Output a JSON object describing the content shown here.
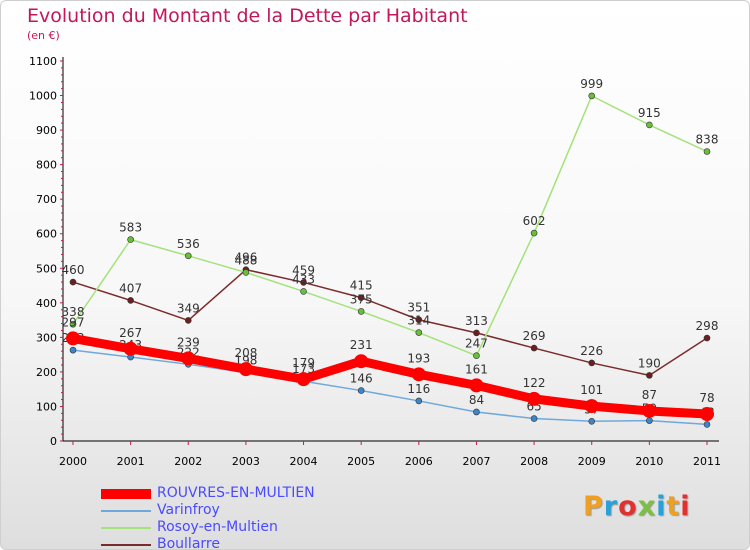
{
  "title": "Evolution du Montant de la Dette par Habitant",
  "subtitle": "(en €)",
  "logo": {
    "text": "Proxiti",
    "colors": [
      "#f0a020",
      "#2aa0d8",
      "#e03030",
      "#7bc043",
      "#2aa0d8",
      "#f0a020",
      "#e03030"
    ]
  },
  "chart_data": {
    "type": "line",
    "title": "Evolution du Montant de la Dette par Habitant",
    "subtitle": "(en €)",
    "x": [
      "2000",
      "2001",
      "2002",
      "2003",
      "2004",
      "2005",
      "2006",
      "2007",
      "2008",
      "2009",
      "2010",
      "2011"
    ],
    "ylim": [
      0,
      1100
    ],
    "yticks": [
      0,
      100,
      200,
      300,
      400,
      500,
      600,
      700,
      800,
      900,
      1000,
      1100
    ],
    "grid": false,
    "legend": "bottom-left",
    "series": [
      {
        "name": "ROUVRES-EN-MULTIEN",
        "color": "#ff0000",
        "dot": "#ff0000",
        "values": [
          297,
          267,
          239,
          208,
          179,
          231,
          193,
          161,
          122,
          101,
          87,
          78
        ]
      },
      {
        "name": "Varinfroy",
        "color": "#6fa8dc",
        "dot": "#3d85c6",
        "values": [
          263,
          243,
          222,
          198,
          173,
          146,
          116,
          84,
          65,
          57,
          59,
          48
        ]
      },
      {
        "name": "Rosoy-en-Multien",
        "color": "#a4e27a",
        "dot": "#6abf3a",
        "values": [
          338,
          583,
          536,
          488,
          433,
          375,
          314,
          247,
          602,
          999,
          915,
          838
        ]
      },
      {
        "name": "Boullarre",
        "color": "#7b2b2b",
        "dot": "#6b1f1f",
        "values": [
          460,
          407,
          349,
          496,
          459,
          415,
          351,
          313,
          269,
          226,
          190,
          298
        ]
      }
    ]
  }
}
